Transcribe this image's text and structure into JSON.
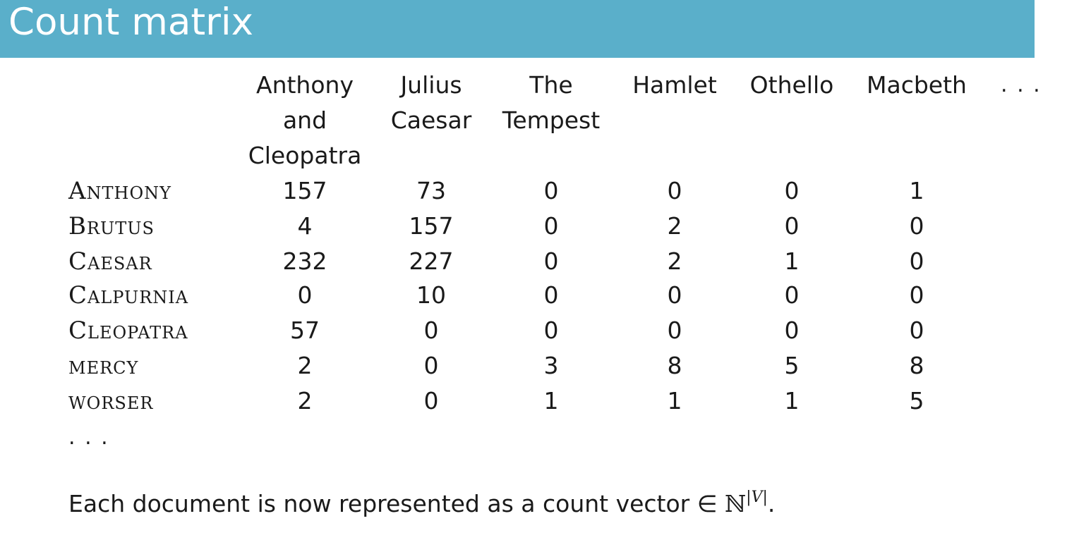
{
  "title": "Count matrix",
  "columns": [
    "Anthony\nand\nCleopatra",
    "Julius\nCaesar",
    "The\nTempest",
    "Hamlet",
    "Othello",
    "Macbeth"
  ],
  "column_ellipsis": ". . .",
  "rows": [
    {
      "term": "Anthony",
      "counts": [
        "157",
        "73",
        "0",
        "0",
        "0",
        "1"
      ]
    },
    {
      "term": "Brutus",
      "counts": [
        "4",
        "157",
        "0",
        "2",
        "0",
        "0"
      ]
    },
    {
      "term": "Caesar",
      "counts": [
        "232",
        "227",
        "0",
        "2",
        "1",
        "0"
      ]
    },
    {
      "term": "Calpurnia",
      "counts": [
        "0",
        "10",
        "0",
        "0",
        "0",
        "0"
      ]
    },
    {
      "term": "Cleopatra",
      "counts": [
        "57",
        "0",
        "0",
        "0",
        "0",
        "0"
      ]
    },
    {
      "term": "mercy",
      "counts": [
        "2",
        "0",
        "3",
        "8",
        "5",
        "8"
      ]
    },
    {
      "term": "worser",
      "counts": [
        "2",
        "0",
        "1",
        "1",
        "1",
        "5"
      ]
    }
  ],
  "row_ellipsis": ". . .",
  "footer": {
    "text": "Each document is now represented as a count vector ∈ ",
    "math": "ℕ",
    "superscript": "|V|",
    "end": "."
  }
}
